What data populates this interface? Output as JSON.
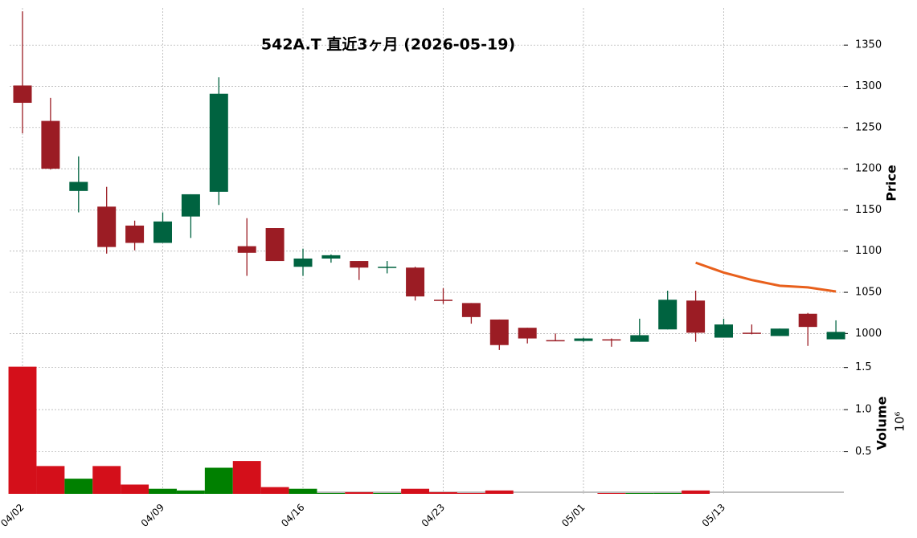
{
  "chart_data": {
    "type": "candlestick",
    "title": "542A.T  直近3ヶ月 (2026-05-19)",
    "ylabel": "Price",
    "categories": [
      "04/02",
      null,
      null,
      null,
      null,
      "04/09",
      null,
      null,
      null,
      null,
      "04/16",
      null,
      null,
      null,
      null,
      "04/23",
      null,
      null,
      null,
      null,
      "05/01",
      null,
      null,
      null,
      null,
      "05/13",
      null,
      null,
      null,
      null
    ],
    "open": [
      1301,
      1258,
      1173,
      1154,
      1131,
      1110,
      1142,
      1172,
      1106,
      1128,
      1081,
      1091,
      1088,
      1080,
      1080,
      1041,
      1037,
      1017,
      1007,
      992,
      991,
      993,
      990,
      1005,
      1040,
      995,
      1001,
      997,
      1024,
      993
    ],
    "high": [
      1391,
      1286,
      1215,
      1178,
      1137,
      1147,
      1169,
      1311,
      1140,
      1128,
      1103,
      1096,
      1088,
      1088,
      1081,
      1055,
      1037,
      1017,
      1007,
      1000,
      995,
      994,
      1018,
      1052,
      1052,
      1018,
      1011,
      1006,
      1025,
      1016
    ],
    "low": [
      1243,
      1199,
      1147,
      1097,
      1101,
      1110,
      1116,
      1156,
      1070,
      1088,
      1070,
      1086,
      1065,
      1073,
      1040,
      1036,
      1012,
      980,
      988,
      991,
      990,
      984,
      990,
      1005,
      990,
      995,
      999,
      997,
      985,
      993
    ],
    "close": [
      1280,
      1200,
      1184,
      1105,
      1110,
      1136,
      1169,
      1291,
      1098,
      1088,
      1091,
      1095,
      1080,
      1081,
      1045,
      1040,
      1020,
      986,
      994,
      991,
      994,
      992,
      998,
      1041,
      1001,
      1011,
      1000,
      1006,
      1008,
      1002
    ],
    "up_color": "#006340",
    "down_color": "#9b1c24",
    "ylim": [
      976,
      1395
    ],
    "yticks": [
      1000,
      1050,
      1100,
      1150,
      1200,
      1250,
      1300,
      1350
    ],
    "grid": true,
    "mav": {
      "color": "#e8601c",
      "values": [
        null,
        null,
        null,
        null,
        null,
        null,
        null,
        null,
        null,
        null,
        null,
        null,
        null,
        null,
        null,
        null,
        null,
        null,
        null,
        null,
        null,
        null,
        null,
        null,
        1086,
        1074,
        1065,
        1058,
        1056,
        1051
      ]
    },
    "volume": {
      "label": "Volume",
      "unit": "10⁶",
      "up_color": "#008000",
      "down_color": "#d40f1a",
      "values": [
        1.51,
        0.33,
        0.18,
        0.33,
        0.11,
        0.06,
        0.04,
        0.31,
        0.39,
        0.08,
        0.06,
        0.01,
        0.02,
        0.01,
        0.06,
        0.02,
        0.01,
        0.04,
        null,
        null,
        null,
        0.005,
        0.005,
        0.01,
        0.04,
        null,
        null,
        null,
        null,
        null
      ],
      "ylim": [
        0,
        1.64
      ],
      "yticks": [
        0.5,
        {
          "value": 1,
          "label": "1.0"
        },
        1.5
      ]
    }
  }
}
